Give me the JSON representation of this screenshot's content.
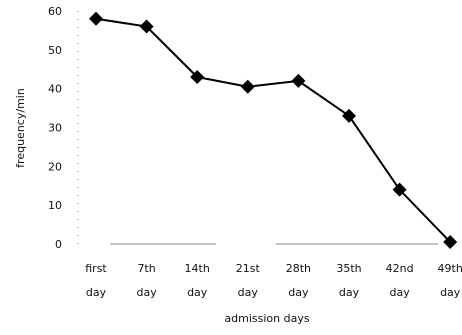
{
  "chart_data": {
    "type": "line",
    "title": "",
    "xlabel": "admission days",
    "ylabel": "frequency/min",
    "categories": [
      [
        "first",
        "day"
      ],
      [
        "7th",
        "day"
      ],
      [
        "14th",
        "day"
      ],
      [
        "21st",
        "day"
      ],
      [
        "28th",
        "day"
      ],
      [
        "35th",
        "day"
      ],
      [
        "42nd",
        "day"
      ],
      [
        "49th",
        "day"
      ]
    ],
    "series": [
      {
        "values": [
          58,
          56,
          43,
          40.5,
          42,
          33,
          14,
          0.5
        ],
        "marker": "diamond",
        "color": "#000000"
      }
    ],
    "ylim": [
      0,
      60
    ],
    "yticks": [
      0,
      10,
      20,
      30,
      40,
      50,
      60
    ],
    "grid": false,
    "legend": "none"
  }
}
